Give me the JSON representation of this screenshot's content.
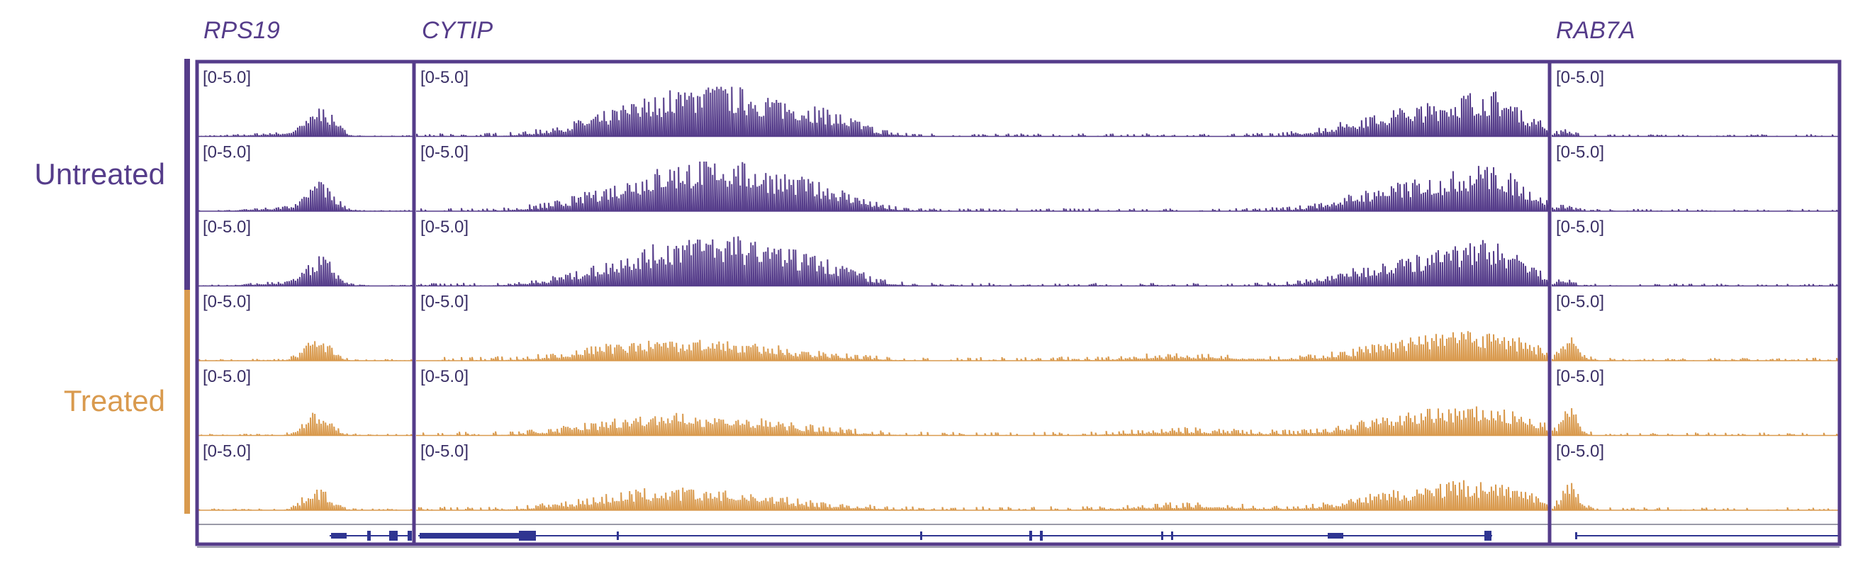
{
  "colors": {
    "untreated": "#553c8a",
    "treated": "#d99a4e",
    "frame": "#553c8a",
    "gene_model": "#2f3591",
    "range_text": "#3a2f66"
  },
  "groups": [
    {
      "id": "untreated",
      "label": "Untreated"
    },
    {
      "id": "treated",
      "label": "Treated"
    }
  ],
  "loci": [
    {
      "gene": "RPS19"
    },
    {
      "gene": "CYTIP"
    },
    {
      "gene": "RAB7A"
    }
  ],
  "range_label": "[0-5.0]",
  "chart_data": {
    "type": "area",
    "description_of_tracks": "coverage tracks",
    "ylim": [
      0,
      5.0
    ],
    "tracks": [
      {
        "group": "untreated",
        "replicate": 1
      },
      {
        "group": "untreated",
        "replicate": 2
      },
      {
        "group": "untreated",
        "replicate": 3
      },
      {
        "group": "treated",
        "replicate": 1
      },
      {
        "group": "treated",
        "replicate": 2
      },
      {
        "group": "treated",
        "replicate": 3
      }
    ],
    "profiles": {
      "untreated": [
        {
          "locus": "RPS19",
          "peaks": [
            [
              0.57,
              0.06,
              2.3
            ],
            [
              0.4,
              0.15,
              0.3
            ]
          ],
          "baseline": 0.08
        },
        {
          "locus": "CYTIP",
          "peaks": [
            [
              0.19,
              0.05,
              1.3
            ],
            [
              0.26,
              0.06,
              2.0
            ],
            [
              0.28,
              0.05,
              1.8
            ],
            [
              0.36,
              0.03,
              1.2
            ],
            [
              0.88,
              0.05,
              2.2
            ],
            [
              0.95,
              0.03,
              2.8
            ]
          ],
          "baseline": 0.2
        },
        {
          "locus": "RAB7A",
          "peaks": [
            [
              0.04,
              0.03,
              0.5
            ]
          ],
          "baseline": 0.15
        }
      ],
      "treated": [
        {
          "locus": "RPS19",
          "peaks": [
            [
              0.55,
              0.06,
              1.9
            ]
          ],
          "baseline": 0.12
        },
        {
          "locus": "CYTIP",
          "peaks": [
            [
              0.19,
              0.05,
              0.8
            ],
            [
              0.27,
              0.07,
              1.2
            ],
            [
              0.88,
              0.05,
              1.4
            ],
            [
              0.95,
              0.04,
              1.6
            ],
            [
              0.68,
              0.05,
              0.4
            ]
          ],
          "baseline": 0.25
        },
        {
          "locus": "RAB7A",
          "peaks": [
            [
              0.06,
              0.03,
              2.2
            ]
          ],
          "baseline": 0.2
        }
      ]
    }
  }
}
